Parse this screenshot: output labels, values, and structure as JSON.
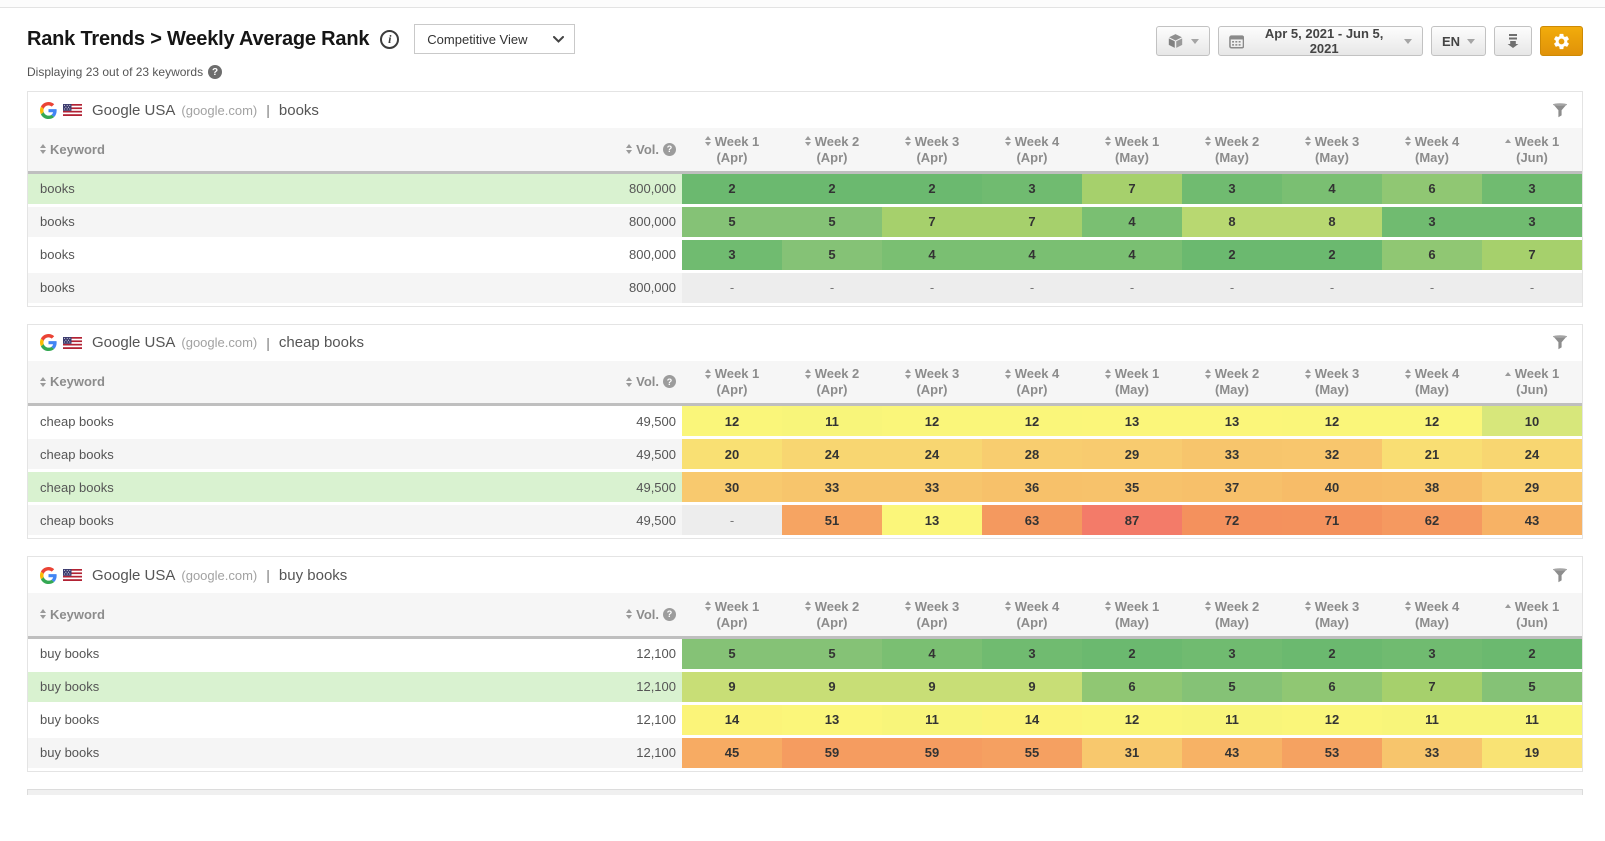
{
  "header": {
    "title": "Rank Trends > Weekly Average Rank",
    "info_icon": "i",
    "view_selector": "Competitive View",
    "subtitle": "Displaying 23 out of 23 keywords",
    "subtitle_help": "?"
  },
  "toolbar": {
    "date_range": "Apr 5, 2021 - Jun 5, 2021",
    "language": "EN"
  },
  "labels": {
    "separator": "|"
  },
  "columns": {
    "keyword": "Keyword",
    "volume": "Vol.",
    "volume_help": "?",
    "weeks": [
      {
        "label": "Week 1",
        "sub": "(Apr)",
        "sort": "both"
      },
      {
        "label": "Week 2",
        "sub": "(Apr)",
        "sort": "both"
      },
      {
        "label": "Week 3",
        "sub": "(Apr)",
        "sort": "both"
      },
      {
        "label": "Week 4",
        "sub": "(Apr)",
        "sort": "both"
      },
      {
        "label": "Week 1",
        "sub": "(May)",
        "sort": "both"
      },
      {
        "label": "Week 2",
        "sub": "(May)",
        "sort": "both"
      },
      {
        "label": "Week 3",
        "sub": "(May)",
        "sort": "both"
      },
      {
        "label": "Week 4",
        "sub": "(May)",
        "sort": "both"
      },
      {
        "label": "Week 1",
        "sub": "(Jun)",
        "sort": "asc"
      }
    ]
  },
  "tables": [
    {
      "engine": "Google USA",
      "domain": "(google.com)",
      "query": "books",
      "rows": [
        {
          "keyword": "books",
          "volume": "800,000",
          "highlight": true,
          "ranks": [
            2,
            2,
            2,
            3,
            7,
            3,
            4,
            6,
            3
          ]
        },
        {
          "keyword": "books",
          "volume": "800,000",
          "highlight": false,
          "ranks": [
            5,
            5,
            7,
            7,
            4,
            8,
            8,
            3,
            3
          ]
        },
        {
          "keyword": "books",
          "volume": "800,000",
          "highlight": false,
          "ranks": [
            3,
            5,
            4,
            4,
            4,
            2,
            2,
            6,
            7
          ]
        },
        {
          "keyword": "books",
          "volume": "800,000",
          "highlight": false,
          "ranks": [
            "-",
            "-",
            "-",
            "-",
            "-",
            "-",
            "-",
            "-",
            "-"
          ]
        }
      ]
    },
    {
      "engine": "Google USA",
      "domain": "(google.com)",
      "query": "cheap books",
      "rows": [
        {
          "keyword": "cheap books",
          "volume": "49,500",
          "highlight": false,
          "ranks": [
            12,
            11,
            12,
            12,
            13,
            13,
            12,
            12,
            10
          ]
        },
        {
          "keyword": "cheap books",
          "volume": "49,500",
          "highlight": false,
          "ranks": [
            20,
            24,
            24,
            28,
            29,
            33,
            32,
            21,
            24
          ]
        },
        {
          "keyword": "cheap books",
          "volume": "49,500",
          "highlight": true,
          "ranks": [
            30,
            33,
            33,
            36,
            35,
            37,
            40,
            38,
            29
          ]
        },
        {
          "keyword": "cheap books",
          "volume": "49,500",
          "highlight": false,
          "ranks": [
            "-",
            51,
            13,
            63,
            87,
            72,
            71,
            62,
            43
          ]
        }
      ]
    },
    {
      "engine": "Google USA",
      "domain": "(google.com)",
      "query": "buy books",
      "rows": [
        {
          "keyword": "buy books",
          "volume": "12,100",
          "highlight": false,
          "ranks": [
            5,
            5,
            4,
            3,
            2,
            3,
            2,
            3,
            2
          ]
        },
        {
          "keyword": "buy books",
          "volume": "12,100",
          "highlight": true,
          "ranks": [
            9,
            9,
            9,
            9,
            6,
            5,
            6,
            7,
            5
          ]
        },
        {
          "keyword": "buy books",
          "volume": "12,100",
          "highlight": false,
          "ranks": [
            14,
            13,
            11,
            14,
            12,
            11,
            12,
            11,
            11
          ]
        },
        {
          "keyword": "buy books",
          "volume": "12,100",
          "highlight": false,
          "ranks": [
            45,
            59,
            59,
            55,
            31,
            43,
            53,
            33,
            19
          ]
        }
      ]
    }
  ],
  "colors": {
    "accent_orange": "#e8a000",
    "highlight_green": "#d9f2d0",
    "row_stripe": "#f5f5f5",
    "dash_cell": "#ededed",
    "heat_scale": [
      [
        1,
        "#67b76d"
      ],
      [
        2,
        "#6bb96f"
      ],
      [
        3,
        "#70bb70"
      ],
      [
        4,
        "#7abf72"
      ],
      [
        5,
        "#85c276"
      ],
      [
        6,
        "#90c773"
      ],
      [
        7,
        "#a6d06c"
      ],
      [
        8,
        "#b8d871"
      ],
      [
        9,
        "#c8de76"
      ],
      [
        10,
        "#d7e77b"
      ],
      [
        11,
        "#f8f57a"
      ],
      [
        13,
        "#fbf67a"
      ],
      [
        15,
        "#fbf177"
      ],
      [
        20,
        "#f9e073"
      ],
      [
        25,
        "#f8d471"
      ],
      [
        30,
        "#f8c96e"
      ],
      [
        35,
        "#f7c26b"
      ],
      [
        40,
        "#f7bc68"
      ],
      [
        45,
        "#f7ab63"
      ],
      [
        50,
        "#f6a562"
      ],
      [
        55,
        "#f5a061"
      ],
      [
        60,
        "#f59b60"
      ],
      [
        65,
        "#f4975f"
      ],
      [
        70,
        "#f4935d"
      ],
      [
        75,
        "#f48f5c"
      ],
      [
        85,
        "#f37e6a"
      ],
      [
        90,
        "#f37767"
      ],
      [
        100,
        "#f26b60"
      ]
    ]
  }
}
